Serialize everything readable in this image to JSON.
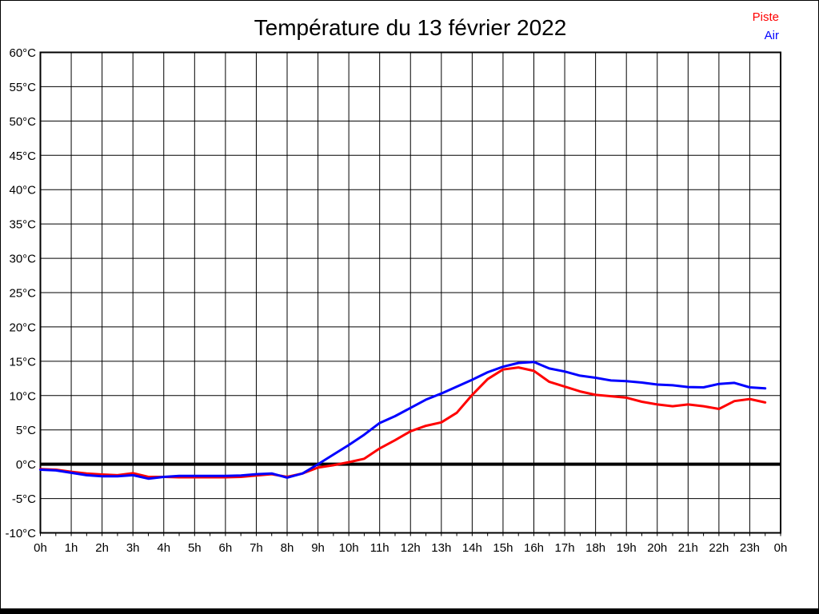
{
  "title": "Température du 13 février 2022",
  "legend": [
    {
      "label": "Piste",
      "color": "#ff0000"
    },
    {
      "label": "Air",
      "color": "#0000ff"
    }
  ],
  "colors": {
    "background": "#ffffff",
    "grid": "#000000",
    "border": "#000000",
    "zero_line": "#000000",
    "piste_line": "#ff0000",
    "air_line": "#0000ff",
    "title_text": "#000000",
    "tick_text": "#000000"
  },
  "chart_data": {
    "type": "line",
    "title": "Température du 13 février 2022",
    "xlim": [
      0,
      24
    ],
    "ylim": [
      -10,
      60
    ],
    "grid": "both",
    "zero_line": true,
    "legend_position": "top-right",
    "x_tick_labels": [
      "0h",
      "1h",
      "2h",
      "3h",
      "4h",
      "5h",
      "6h",
      "7h",
      "8h",
      "9h",
      "10h",
      "11h",
      "12h",
      "13h",
      "14h",
      "15h",
      "16h",
      "17h",
      "18h",
      "19h",
      "20h",
      "21h",
      "22h",
      "23h",
      "0h"
    ],
    "y_tick_labels": [
      "60°C",
      "55°C",
      "50°C",
      "45°C",
      "40°C",
      "35°C",
      "30°C",
      "25°C",
      "20°C",
      "15°C",
      "10°C",
      "5°C",
      "0°C",
      "-5°C",
      "-10°C"
    ],
    "y_tick_values": [
      60,
      55,
      50,
      45,
      40,
      35,
      30,
      25,
      20,
      15,
      10,
      5,
      0,
      -5,
      -10
    ],
    "minor_x_tick_step": 0.5,
    "x": [
      0,
      0.5,
      1,
      1.5,
      2,
      2.5,
      3,
      3.5,
      4,
      4.5,
      5,
      5.5,
      6,
      6.5,
      7,
      7.5,
      8,
      8.5,
      9,
      9.5,
      10,
      10.5,
      11,
      11.5,
      12,
      12.5,
      13,
      13.5,
      14,
      14.5,
      15,
      15.5,
      16,
      16.5,
      17,
      17.5,
      18,
      18.5,
      19,
      19.5,
      20,
      20.5,
      21,
      21.5,
      22,
      22.5,
      23,
      23.5
    ],
    "series": [
      {
        "name": "Piste",
        "color": "#ff0000",
        "values": [
          -0.7,
          -0.8,
          -1.1,
          -1.35,
          -1.5,
          -1.6,
          -1.3,
          -1.85,
          -1.85,
          -1.9,
          -1.9,
          -1.9,
          -1.9,
          -1.85,
          -1.65,
          -1.45,
          -1.85,
          -1.35,
          -0.5,
          -0.15,
          0.3,
          0.8,
          2.3,
          3.5,
          4.8,
          5.6,
          6.1,
          7.5,
          10.1,
          12.4,
          13.8,
          14.1,
          13.6,
          12,
          11.3,
          10.6,
          10.1,
          9.9,
          9.7,
          9.1,
          8.7,
          8.45,
          8.7,
          8.45,
          8.05,
          9.2,
          9.5,
          9
        ]
      },
      {
        "name": "Air",
        "color": "#0000ff",
        "values": [
          -0.8,
          -0.9,
          -1.25,
          -1.6,
          -1.75,
          -1.75,
          -1.6,
          -2.1,
          -1.85,
          -1.7,
          -1.7,
          -1.7,
          -1.7,
          -1.65,
          -1.45,
          -1.35,
          -1.95,
          -1.35,
          0,
          1.4,
          2.8,
          4.3,
          6,
          7,
          8.2,
          9.4,
          10.3,
          11.3,
          12.3,
          13.4,
          14.2,
          14.75,
          14.9,
          13.95,
          13.5,
          12.9,
          12.6,
          12.2,
          12.1,
          11.9,
          11.6,
          11.5,
          11.25,
          11.2,
          11.7,
          11.85,
          11.2,
          11.05
        ]
      }
    ]
  }
}
